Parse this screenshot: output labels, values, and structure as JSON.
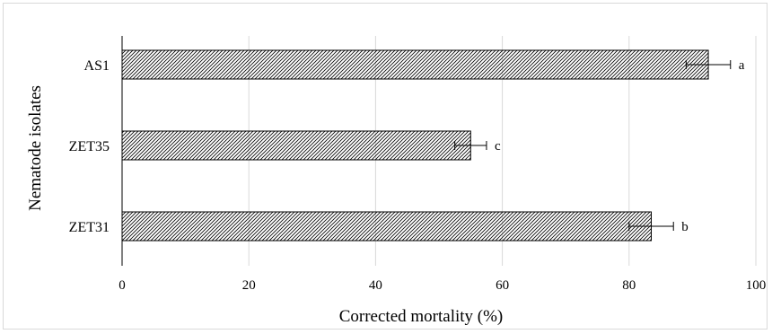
{
  "chart_data": {
    "type": "bar",
    "orientation": "horizontal",
    "categories": [
      "AS1",
      "ZET35",
      "ZET31"
    ],
    "values": [
      92.5,
      55.0,
      83.5
    ],
    "errors": [
      3.5,
      2.5,
      3.5
    ],
    "significance": [
      "a",
      "c",
      "b"
    ],
    "xlabel": "Corrected mortality (%)",
    "ylabel": "Nematode isolates",
    "xlim": [
      0,
      100
    ],
    "xticks": [
      0,
      20,
      40,
      60,
      80,
      100
    ],
    "grid": "vertical",
    "bar_fill": "diagonal-hatch",
    "colors": {
      "bar_stroke": "#000000",
      "hatch": "#000000",
      "grid": "#d9d9d9",
      "frame": "#d9d9d9"
    }
  }
}
